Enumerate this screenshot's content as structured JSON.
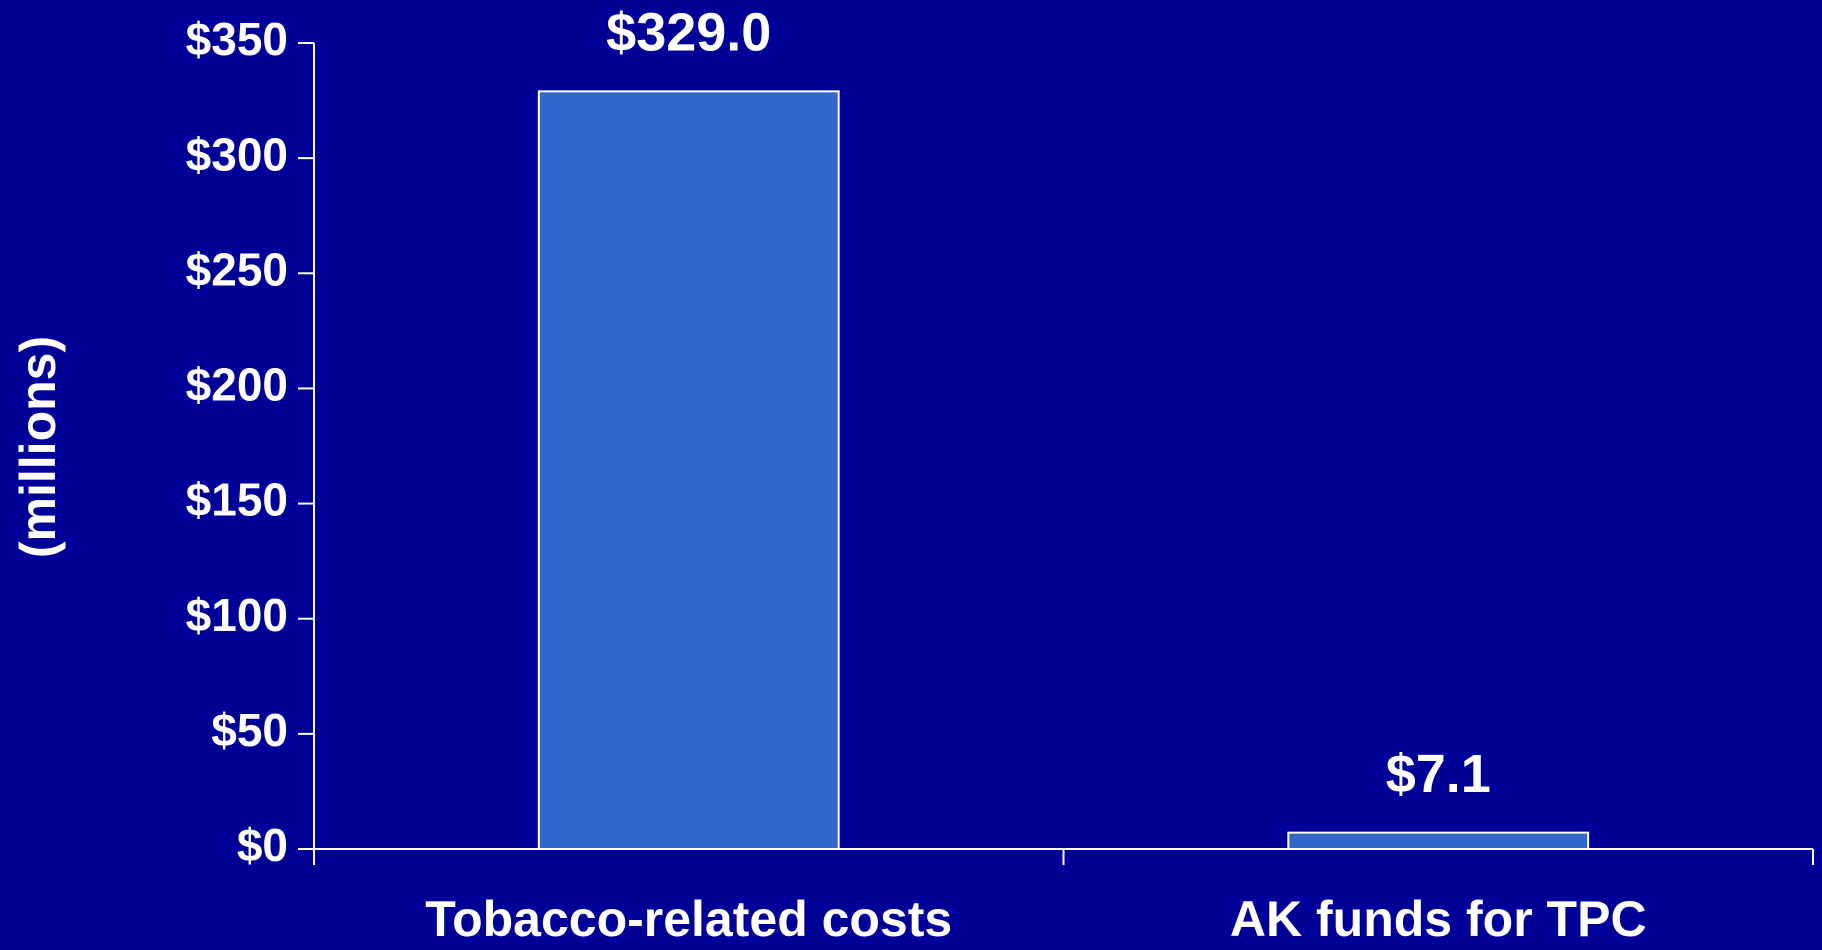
{
  "chart_data": {
    "type": "bar",
    "y_label": "(millions)",
    "categories": [
      "Tobacco-related costs",
      "AK funds for TPC"
    ],
    "values": [
      329.0,
      7.1
    ],
    "value_labels": [
      "$329.0",
      "$7.1"
    ],
    "color": "#3366cc",
    "ylim": [
      0,
      350
    ],
    "yticks": [
      {
        "value": 0,
        "label": "$0"
      },
      {
        "value": 50,
        "label": "$50"
      },
      {
        "value": 100,
        "label": "$100"
      },
      {
        "value": 150,
        "label": "$150"
      },
      {
        "value": 200,
        "label": "$200"
      },
      {
        "value": 250,
        "label": "$250"
      },
      {
        "value": 300,
        "label": "$300"
      },
      {
        "value": 350,
        "label": "$350"
      }
    ]
  }
}
